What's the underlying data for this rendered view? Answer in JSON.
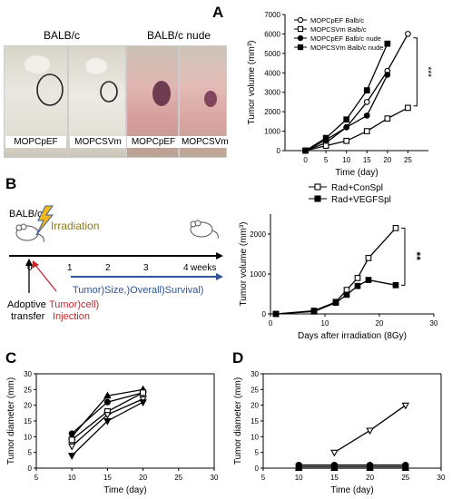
{
  "panels": {
    "A": {
      "letter": "A",
      "photo_groups": [
        "BALB/c",
        "BALB/c nude"
      ],
      "photo_labels": [
        "MOPCpEF",
        "MOPCSVm",
        "MOPCpEF",
        "MOPCSVm"
      ],
      "significance": "***"
    },
    "B": {
      "letter": "B",
      "mouse_label": "BALB/c",
      "irradiation": "Irradiation",
      "weeks_label": "weeks",
      "ticks": [
        "0",
        "1",
        "2",
        "3",
        "4"
      ],
      "arrow_text": "Tumor)Size,)Overall)Survival)",
      "adoptive": [
        "Adoptive",
        "transfer"
      ],
      "injection": [
        "Tumor)cell)",
        "Injection"
      ],
      "significance": "**"
    },
    "C": {
      "letter": "C"
    },
    "D": {
      "letter": "D"
    }
  },
  "colors": {
    "irradiation_text": "#8a7a1a",
    "red": "#c0282d",
    "blue": "#2f5597",
    "bolt": "#f2b81c"
  },
  "chart_data": [
    {
      "id": "A",
      "type": "line",
      "xlabel": "Time (day)",
      "ylabel": "Tumor volume (mm³)",
      "xlim": [
        -5,
        30
      ],
      "ylim": [
        0,
        7000
      ],
      "xticks": [
        0,
        5,
        10,
        15,
        20,
        25
      ],
      "yticks": [
        0,
        1000,
        2000,
        3000,
        4000,
        5000,
        6000,
        7000
      ],
      "legend": "top-left",
      "series": [
        {
          "name": "MOPCpEF Balb/c",
          "marker": "circle-open",
          "x": [
            0,
            5,
            10,
            15,
            20,
            25
          ],
          "y": [
            0,
            400,
            1200,
            2500,
            4100,
            6000
          ]
        },
        {
          "name": "MOPCSVm Balb/c",
          "marker": "square-open",
          "x": [
            0,
            5,
            10,
            15,
            20,
            25
          ],
          "y": [
            0,
            250,
            500,
            1000,
            1650,
            2200
          ]
        },
        {
          "name": "MOPCpEF Balb/c nude",
          "marker": "circle-filled",
          "x": [
            0,
            5,
            10,
            15,
            20
          ],
          "y": [
            0,
            550,
            1200,
            1800,
            3900
          ]
        },
        {
          "name": "MOPCSVm Balb/c nude",
          "marker": "square-filled",
          "x": [
            0,
            5,
            10,
            15,
            20
          ],
          "y": [
            0,
            650,
            1600,
            3100,
            5500
          ]
        }
      ]
    },
    {
      "id": "B",
      "type": "line",
      "xlabel": "Days after irradiation (8Gy)",
      "ylabel": "Tumor volume (mm³)",
      "xlim": [
        0,
        30
      ],
      "ylim": [
        0,
        2500
      ],
      "xticks": [
        0,
        10,
        20,
        30
      ],
      "yticks": [
        0,
        1000,
        2000
      ],
      "legend": "top",
      "series": [
        {
          "name": "Rad+ConSpl",
          "marker": "square-open",
          "x": [
            1,
            8,
            12,
            14,
            16,
            18,
            23
          ],
          "y": [
            0,
            80,
            300,
            600,
            900,
            1400,
            2150
          ]
        },
        {
          "name": "Rad+VEGFSpl",
          "marker": "square-filled",
          "x": [
            1,
            8,
            12,
            14,
            16,
            18,
            23
          ],
          "y": [
            0,
            60,
            280,
            480,
            700,
            850,
            720
          ]
        }
      ]
    },
    {
      "id": "C",
      "type": "line",
      "xlabel": "Time (day)",
      "ylabel": "Tumor diameter (mm)",
      "xlim": [
        5,
        30
      ],
      "ylim": [
        0,
        30
      ],
      "xticks": [
        5,
        10,
        15,
        20,
        25,
        30
      ],
      "yticks": [
        0,
        5,
        10,
        15,
        20,
        25,
        30
      ],
      "series": [
        {
          "marker": "triangle-up-filled",
          "x": [
            10,
            15,
            20
          ],
          "y": [
            10,
            23,
            25
          ]
        },
        {
          "marker": "circle-filled",
          "x": [
            10,
            15,
            20
          ],
          "y": [
            11,
            21,
            24
          ]
        },
        {
          "marker": "square-open",
          "x": [
            10,
            15,
            20
          ],
          "y": [
            9,
            18,
            24
          ]
        },
        {
          "marker": "triangle-down-open",
          "x": [
            10,
            15,
            20
          ],
          "y": [
            7,
            17,
            22
          ]
        },
        {
          "marker": "triangle-down-filled",
          "x": [
            10,
            15,
            20
          ],
          "y": [
            4,
            15,
            21
          ]
        }
      ]
    },
    {
      "id": "D",
      "type": "line",
      "xlabel": "Time (day)",
      "ylabel": "Tumor diameter (mm)",
      "xlim": [
        5,
        30
      ],
      "ylim": [
        0,
        30
      ],
      "xticks": [
        5,
        10,
        15,
        20,
        25,
        30
      ],
      "yticks": [
        0,
        5,
        10,
        15,
        20,
        25,
        30
      ],
      "series": [
        {
          "marker": "triangle-down-open",
          "x": [
            15,
            20,
            25
          ],
          "y": [
            5,
            12,
            20
          ]
        },
        {
          "marker": "circle-filled",
          "x": [
            10,
            15,
            20,
            25
          ],
          "y": [
            1,
            1,
            1,
            1
          ]
        },
        {
          "marker": "square-filled",
          "x": [
            10,
            15,
            20,
            25
          ],
          "y": [
            0.5,
            0.5,
            0.5,
            0.5
          ]
        },
        {
          "marker": "triangle-up-filled",
          "x": [
            10,
            15,
            20,
            25
          ],
          "y": [
            0,
            0,
            0,
            0
          ]
        }
      ]
    }
  ]
}
